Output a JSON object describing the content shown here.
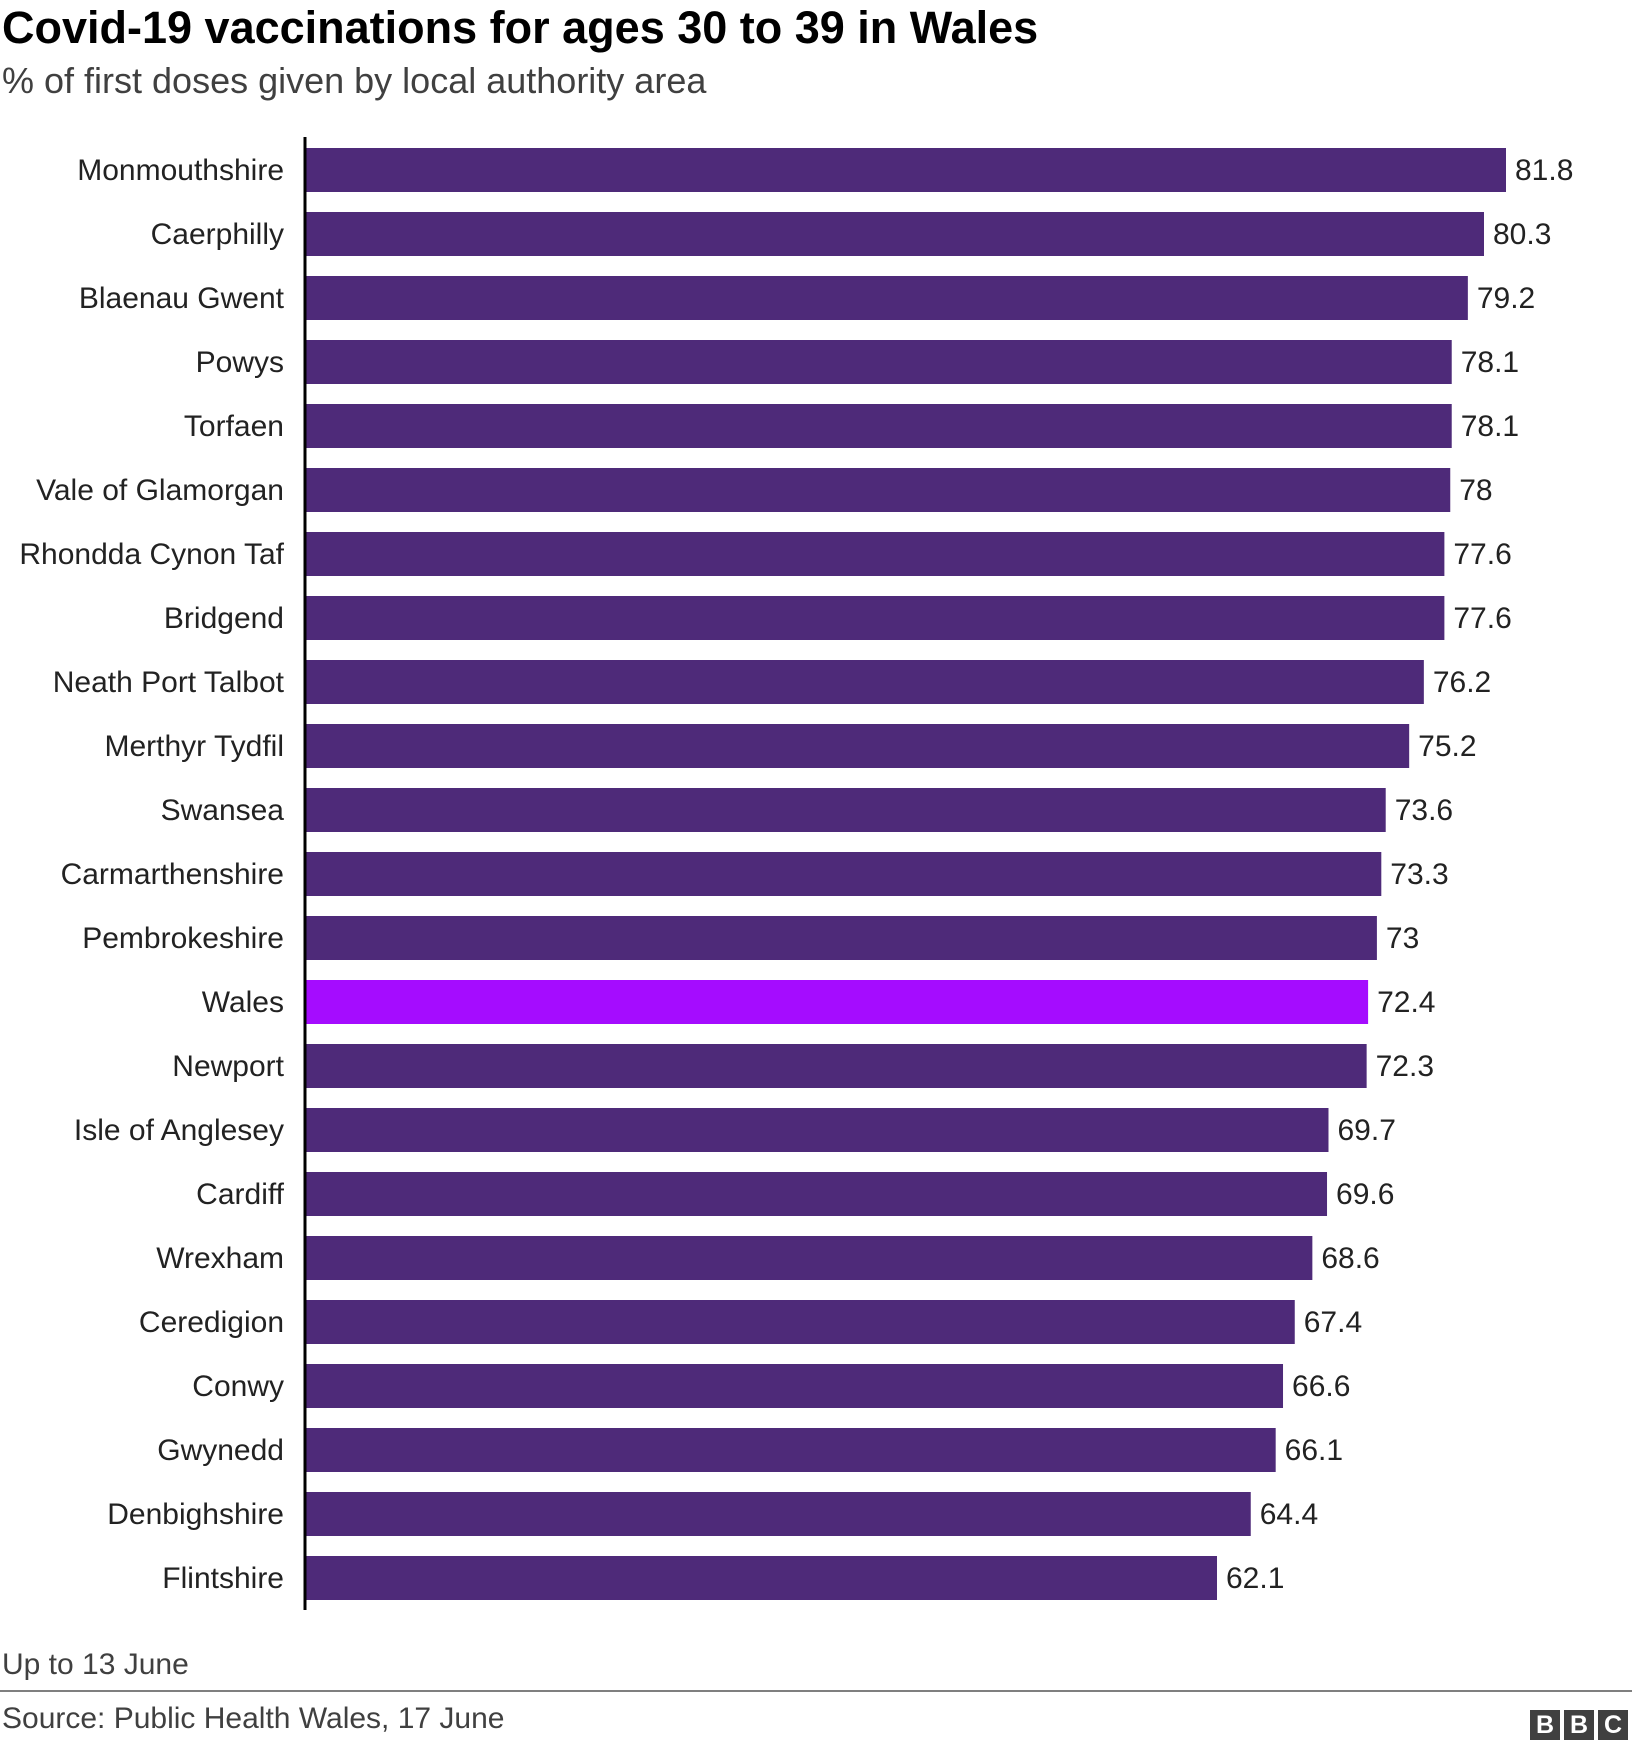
{
  "title": "Covid-19 vaccinations for ages 30 to 39 in Wales",
  "subtitle": "% of first doses given by local authority area",
  "footnote": "Up to 13 June",
  "source": "Source: Public Health Wales, 17 June",
  "logo": {
    "letters": [
      "B",
      "B",
      "C"
    ]
  },
  "colors": {
    "bar": "#4e2a79",
    "highlight": "#a50cff",
    "text": "#222222",
    "axis": "#000000"
  },
  "chart_data": {
    "type": "bar",
    "orientation": "horizontal",
    "title": "Covid-19 vaccinations for ages 30 to 39 in Wales",
    "subtitle": "% of first doses given by local authority area",
    "xlim": [
      0,
      85
    ],
    "grid": false,
    "highlight_category": "Wales",
    "categories": [
      "Monmouthshire",
      "Caerphilly",
      "Blaenau Gwent",
      "Powys",
      "Torfaen",
      "Vale of Glamorgan",
      "Rhondda Cynon Taf",
      "Bridgend",
      "Neath Port Talbot",
      "Merthyr Tydfil",
      "Swansea",
      "Carmarthenshire",
      "Pembrokeshire",
      "Wales",
      "Newport",
      "Isle of Anglesey",
      "Cardiff",
      "Wrexham",
      "Ceredigion",
      "Conwy",
      "Gwynedd",
      "Denbighshire",
      "Flintshire"
    ],
    "values": [
      81.8,
      80.3,
      79.2,
      78.1,
      78.1,
      78,
      77.6,
      77.6,
      76.2,
      75.2,
      73.6,
      73.3,
      73,
      72.4,
      72.3,
      69.7,
      69.6,
      68.6,
      67.4,
      66.6,
      66.1,
      64.4,
      62.1
    ],
    "value_labels": [
      "81.8",
      "80.3",
      "79.2",
      "78.1",
      "78.1",
      "78",
      "77.6",
      "77.6",
      "76.2",
      "75.2",
      "73.6",
      "73.3",
      "73",
      "72.4",
      "72.3",
      "69.7",
      "69.6",
      "68.6",
      "67.4",
      "66.6",
      "66.1",
      "64.4",
      "62.1"
    ]
  }
}
